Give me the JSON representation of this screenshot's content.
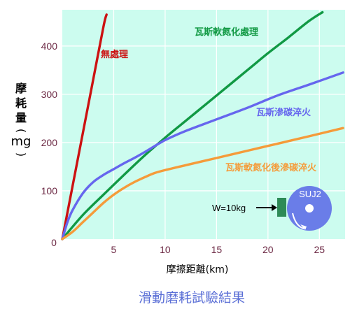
{
  "chart_data": {
    "type": "line",
    "title": "滑動磨耗試驗結果",
    "xlabel": "摩擦距離(km)",
    "ylabel_chars": [
      "摩",
      "耗",
      "量",
      "(",
      "mg",
      ")"
    ],
    "xlim": [
      0,
      27.5
    ],
    "ylim": [
      0,
      475
    ],
    "x_ticks": [
      0,
      5,
      10,
      15,
      20,
      25
    ],
    "x_tick_labels": [
      "",
      "5",
      "10",
      "15",
      "20",
      "25"
    ],
    "y_ticks": [
      0,
      100,
      200,
      300,
      400
    ],
    "y_tick_labels": [
      "0",
      "100",
      "200",
      "300",
      "400"
    ],
    "origin_label": "0",
    "grid": true,
    "series": [
      {
        "name": "無處理",
        "color": "#cc1111",
        "x": [
          0,
          1,
          2,
          3,
          4,
          4.3
        ],
        "y": [
          0,
          110,
          220,
          330,
          440,
          465
        ]
      },
      {
        "name": "瓦斯軟氮化處理",
        "color": "#119944",
        "x": [
          0,
          2,
          4,
          6,
          8,
          10,
          12,
          14,
          16,
          18,
          20,
          22,
          24,
          25.3
        ],
        "y": [
          0,
          50,
          92,
          133,
          173,
          210,
          245,
          280,
          315,
          350,
          385,
          418,
          452,
          470
        ]
      },
      {
        "name": "瓦斯滲碳淬火",
        "color": "#6666ee",
        "x": [
          0,
          0.5,
          1,
          2,
          3,
          4,
          5,
          6,
          7,
          8,
          10,
          12,
          15,
          18,
          21,
          24,
          27.3
        ],
        "y": [
          0,
          35,
          60,
          95,
          118,
          133,
          145,
          157,
          168,
          180,
          205,
          224,
          248,
          272,
          298,
          320,
          345
        ]
      },
      {
        "name": "瓦斯軟氮化後滲碳淬火",
        "color": "#f59b3a",
        "x": [
          0,
          1,
          2,
          3,
          4,
          5,
          6,
          7,
          8,
          9,
          10,
          12,
          15,
          18,
          21,
          24,
          27.3
        ],
        "y": [
          0,
          15,
          35,
          55,
          75,
          92,
          106,
          118,
          128,
          137,
          143,
          153,
          168,
          183,
          198,
          213,
          230
        ]
      }
    ],
    "annotation": {
      "load_label": "W=10kg",
      "disk_label": "SUJ2"
    }
  }
}
